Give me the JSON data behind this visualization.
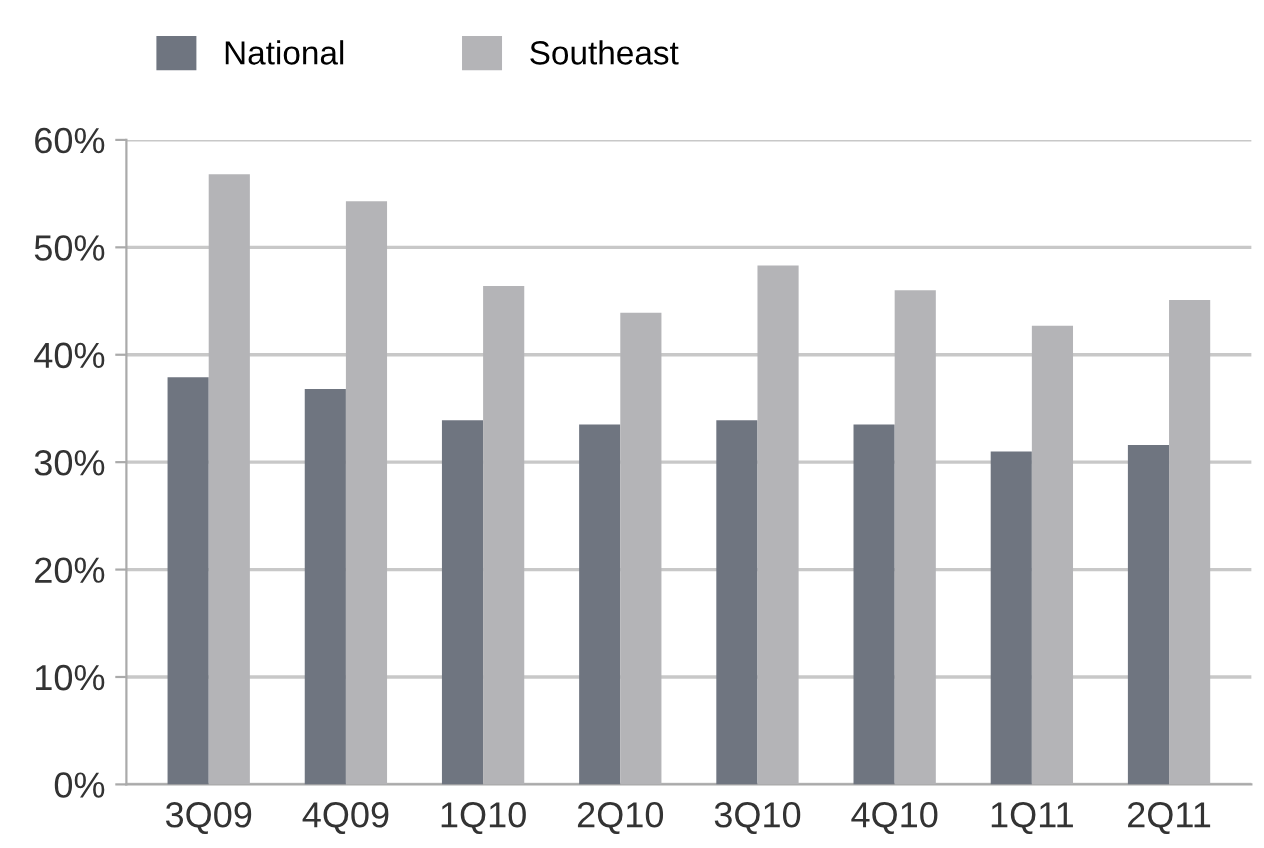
{
  "chart_data": {
    "type": "bar",
    "categories": [
      "3Q09",
      "4Q09",
      "1Q10",
      "2Q10",
      "3Q10",
      "4Q10",
      "1Q11",
      "2Q11"
    ],
    "series": [
      {
        "name": "National",
        "color": "#6f7580",
        "values": [
          37.9,
          36.8,
          33.9,
          33.5,
          33.9,
          33.5,
          31.0,
          31.6
        ]
      },
      {
        "name": "Southeast",
        "color": "#b4b4b7",
        "values": [
          56.8,
          54.3,
          46.4,
          43.9,
          48.3,
          46.0,
          42.7,
          45.1
        ]
      }
    ],
    "ylim": [
      0,
      60
    ],
    "yticks": [
      {
        "value": 0,
        "label": "0%"
      },
      {
        "value": 10,
        "label": "10%"
      },
      {
        "value": 20,
        "label": "20%"
      },
      {
        "value": 30,
        "label": "30%"
      },
      {
        "value": 40,
        "label": "40%"
      },
      {
        "value": 50,
        "label": "50%"
      },
      {
        "value": 60,
        "label": "60%"
      }
    ],
    "grid": "y",
    "legend": "top left"
  }
}
